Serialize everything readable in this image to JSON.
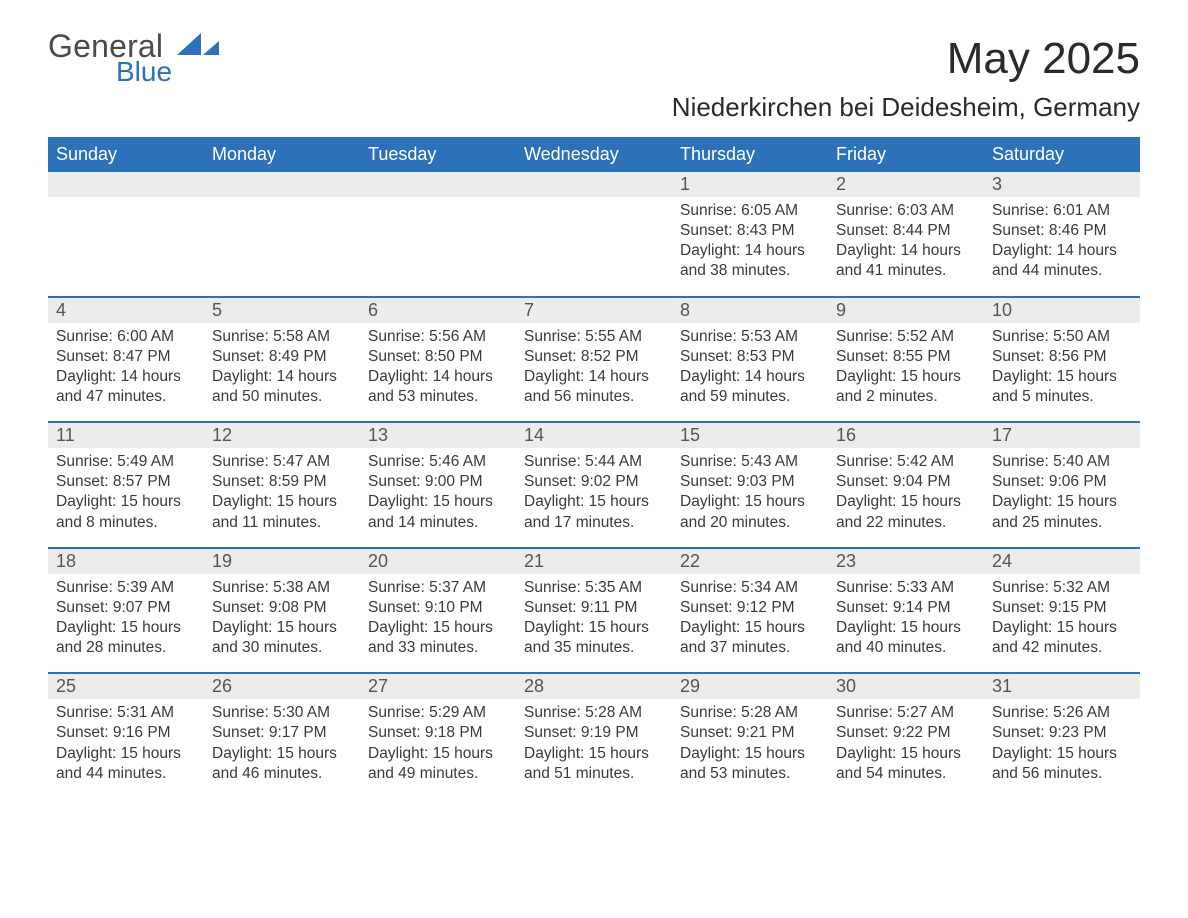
{
  "logo": {
    "word1": "General",
    "word2": "Blue",
    "brand_color": "#2d71b8",
    "text_color": "#4a4a4a"
  },
  "title": "May 2025",
  "subtitle": "Niederkirchen bei Deidesheim, Germany",
  "colors": {
    "header_bg": "#2d71b8",
    "header_text": "#ffffff",
    "daynum_bg": "#ececec",
    "daynum_text": "#555555",
    "body_text": "#3a3a3a",
    "rule": "#2d71b8",
    "page_bg": "#ffffff"
  },
  "typography": {
    "font_family": "Arial, Helvetica, sans-serif",
    "title_size_pt": 33,
    "subtitle_size_pt": 20,
    "dayhead_size_pt": 14,
    "body_size_pt": 12
  },
  "day_headers": [
    "Sunday",
    "Monday",
    "Tuesday",
    "Wednesday",
    "Thursday",
    "Friday",
    "Saturday"
  ],
  "weeks": [
    [
      {
        "num": "",
        "sunrise": "",
        "sunset": "",
        "daylight1": "",
        "daylight2": ""
      },
      {
        "num": "",
        "sunrise": "",
        "sunset": "",
        "daylight1": "",
        "daylight2": ""
      },
      {
        "num": "",
        "sunrise": "",
        "sunset": "",
        "daylight1": "",
        "daylight2": ""
      },
      {
        "num": "",
        "sunrise": "",
        "sunset": "",
        "daylight1": "",
        "daylight2": ""
      },
      {
        "num": "1",
        "sunrise": "Sunrise: 6:05 AM",
        "sunset": "Sunset: 8:43 PM",
        "daylight1": "Daylight: 14 hours",
        "daylight2": "and 38 minutes."
      },
      {
        "num": "2",
        "sunrise": "Sunrise: 6:03 AM",
        "sunset": "Sunset: 8:44 PM",
        "daylight1": "Daylight: 14 hours",
        "daylight2": "and 41 minutes."
      },
      {
        "num": "3",
        "sunrise": "Sunrise: 6:01 AM",
        "sunset": "Sunset: 8:46 PM",
        "daylight1": "Daylight: 14 hours",
        "daylight2": "and 44 minutes."
      }
    ],
    [
      {
        "num": "4",
        "sunrise": "Sunrise: 6:00 AM",
        "sunset": "Sunset: 8:47 PM",
        "daylight1": "Daylight: 14 hours",
        "daylight2": "and 47 minutes."
      },
      {
        "num": "5",
        "sunrise": "Sunrise: 5:58 AM",
        "sunset": "Sunset: 8:49 PM",
        "daylight1": "Daylight: 14 hours",
        "daylight2": "and 50 minutes."
      },
      {
        "num": "6",
        "sunrise": "Sunrise: 5:56 AM",
        "sunset": "Sunset: 8:50 PM",
        "daylight1": "Daylight: 14 hours",
        "daylight2": "and 53 minutes."
      },
      {
        "num": "7",
        "sunrise": "Sunrise: 5:55 AM",
        "sunset": "Sunset: 8:52 PM",
        "daylight1": "Daylight: 14 hours",
        "daylight2": "and 56 minutes."
      },
      {
        "num": "8",
        "sunrise": "Sunrise: 5:53 AM",
        "sunset": "Sunset: 8:53 PM",
        "daylight1": "Daylight: 14 hours",
        "daylight2": "and 59 minutes."
      },
      {
        "num": "9",
        "sunrise": "Sunrise: 5:52 AM",
        "sunset": "Sunset: 8:55 PM",
        "daylight1": "Daylight: 15 hours",
        "daylight2": "and 2 minutes."
      },
      {
        "num": "10",
        "sunrise": "Sunrise: 5:50 AM",
        "sunset": "Sunset: 8:56 PM",
        "daylight1": "Daylight: 15 hours",
        "daylight2": "and 5 minutes."
      }
    ],
    [
      {
        "num": "11",
        "sunrise": "Sunrise: 5:49 AM",
        "sunset": "Sunset: 8:57 PM",
        "daylight1": "Daylight: 15 hours",
        "daylight2": "and 8 minutes."
      },
      {
        "num": "12",
        "sunrise": "Sunrise: 5:47 AM",
        "sunset": "Sunset: 8:59 PM",
        "daylight1": "Daylight: 15 hours",
        "daylight2": "and 11 minutes."
      },
      {
        "num": "13",
        "sunrise": "Sunrise: 5:46 AM",
        "sunset": "Sunset: 9:00 PM",
        "daylight1": "Daylight: 15 hours",
        "daylight2": "and 14 minutes."
      },
      {
        "num": "14",
        "sunrise": "Sunrise: 5:44 AM",
        "sunset": "Sunset: 9:02 PM",
        "daylight1": "Daylight: 15 hours",
        "daylight2": "and 17 minutes."
      },
      {
        "num": "15",
        "sunrise": "Sunrise: 5:43 AM",
        "sunset": "Sunset: 9:03 PM",
        "daylight1": "Daylight: 15 hours",
        "daylight2": "and 20 minutes."
      },
      {
        "num": "16",
        "sunrise": "Sunrise: 5:42 AM",
        "sunset": "Sunset: 9:04 PM",
        "daylight1": "Daylight: 15 hours",
        "daylight2": "and 22 minutes."
      },
      {
        "num": "17",
        "sunrise": "Sunrise: 5:40 AM",
        "sunset": "Sunset: 9:06 PM",
        "daylight1": "Daylight: 15 hours",
        "daylight2": "and 25 minutes."
      }
    ],
    [
      {
        "num": "18",
        "sunrise": "Sunrise: 5:39 AM",
        "sunset": "Sunset: 9:07 PM",
        "daylight1": "Daylight: 15 hours",
        "daylight2": "and 28 minutes."
      },
      {
        "num": "19",
        "sunrise": "Sunrise: 5:38 AM",
        "sunset": "Sunset: 9:08 PM",
        "daylight1": "Daylight: 15 hours",
        "daylight2": "and 30 minutes."
      },
      {
        "num": "20",
        "sunrise": "Sunrise: 5:37 AM",
        "sunset": "Sunset: 9:10 PM",
        "daylight1": "Daylight: 15 hours",
        "daylight2": "and 33 minutes."
      },
      {
        "num": "21",
        "sunrise": "Sunrise: 5:35 AM",
        "sunset": "Sunset: 9:11 PM",
        "daylight1": "Daylight: 15 hours",
        "daylight2": "and 35 minutes."
      },
      {
        "num": "22",
        "sunrise": "Sunrise: 5:34 AM",
        "sunset": "Sunset: 9:12 PM",
        "daylight1": "Daylight: 15 hours",
        "daylight2": "and 37 minutes."
      },
      {
        "num": "23",
        "sunrise": "Sunrise: 5:33 AM",
        "sunset": "Sunset: 9:14 PM",
        "daylight1": "Daylight: 15 hours",
        "daylight2": "and 40 minutes."
      },
      {
        "num": "24",
        "sunrise": "Sunrise: 5:32 AM",
        "sunset": "Sunset: 9:15 PM",
        "daylight1": "Daylight: 15 hours",
        "daylight2": "and 42 minutes."
      }
    ],
    [
      {
        "num": "25",
        "sunrise": "Sunrise: 5:31 AM",
        "sunset": "Sunset: 9:16 PM",
        "daylight1": "Daylight: 15 hours",
        "daylight2": "and 44 minutes."
      },
      {
        "num": "26",
        "sunrise": "Sunrise: 5:30 AM",
        "sunset": "Sunset: 9:17 PM",
        "daylight1": "Daylight: 15 hours",
        "daylight2": "and 46 minutes."
      },
      {
        "num": "27",
        "sunrise": "Sunrise: 5:29 AM",
        "sunset": "Sunset: 9:18 PM",
        "daylight1": "Daylight: 15 hours",
        "daylight2": "and 49 minutes."
      },
      {
        "num": "28",
        "sunrise": "Sunrise: 5:28 AM",
        "sunset": "Sunset: 9:19 PM",
        "daylight1": "Daylight: 15 hours",
        "daylight2": "and 51 minutes."
      },
      {
        "num": "29",
        "sunrise": "Sunrise: 5:28 AM",
        "sunset": "Sunset: 9:21 PM",
        "daylight1": "Daylight: 15 hours",
        "daylight2": "and 53 minutes."
      },
      {
        "num": "30",
        "sunrise": "Sunrise: 5:27 AM",
        "sunset": "Sunset: 9:22 PM",
        "daylight1": "Daylight: 15 hours",
        "daylight2": "and 54 minutes."
      },
      {
        "num": "31",
        "sunrise": "Sunrise: 5:26 AM",
        "sunset": "Sunset: 9:23 PM",
        "daylight1": "Daylight: 15 hours",
        "daylight2": "and 56 minutes."
      }
    ]
  ]
}
